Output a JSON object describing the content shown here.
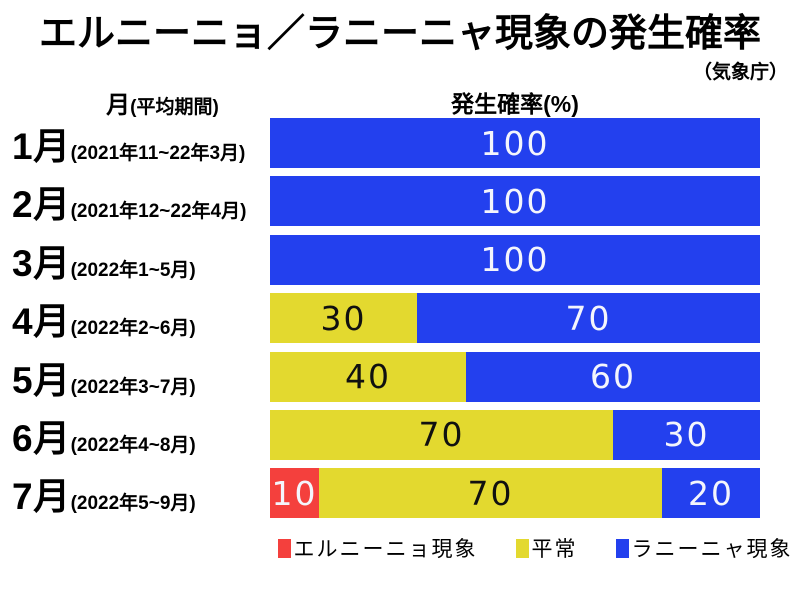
{
  "title": "エルニーニョ／ラニーニャ現象の発生確率",
  "source": "（気象庁）",
  "headers": {
    "month_label": "月",
    "month_period": "(平均期間)",
    "probability": "発生確率(%)"
  },
  "colors": {
    "elnino": "#f4403d",
    "normal": "#e3d92f",
    "lanina": "#2340ee",
    "background": "#ffffff",
    "text": "#000000",
    "bar_text_light": "#f4f5fc",
    "bar_text_dark": "#101010"
  },
  "rows": [
    {
      "month": "1月",
      "period": "(2021年11~22年3月)",
      "segments": [
        {
          "series": "lanina",
          "value": 100
        }
      ]
    },
    {
      "month": "2月",
      "period": "(2021年12~22年4月)",
      "segments": [
        {
          "series": "lanina",
          "value": 100
        }
      ]
    },
    {
      "month": "3月",
      "period": "(2022年1~5月)",
      "segments": [
        {
          "series": "lanina",
          "value": 100
        }
      ]
    },
    {
      "month": "4月",
      "period": "(2022年2~6月)",
      "segments": [
        {
          "series": "normal",
          "value": 30
        },
        {
          "series": "lanina",
          "value": 70
        }
      ]
    },
    {
      "month": "5月",
      "period": "(2022年3~7月)",
      "segments": [
        {
          "series": "normal",
          "value": 40
        },
        {
          "series": "lanina",
          "value": 60
        }
      ]
    },
    {
      "month": "6月",
      "period": "(2022年4~8月)",
      "segments": [
        {
          "series": "normal",
          "value": 70
        },
        {
          "series": "lanina",
          "value": 30
        }
      ]
    },
    {
      "month": "7月",
      "period": "(2022年5~9月)",
      "segments": [
        {
          "series": "elnino",
          "value": 10
        },
        {
          "series": "normal",
          "value": 70
        },
        {
          "series": "lanina",
          "value": 20
        }
      ]
    }
  ],
  "legend": [
    {
      "key": "elnino",
      "label": "エルニーニョ現象"
    },
    {
      "key": "normal",
      "label": "平常"
    },
    {
      "key": "lanina",
      "label": "ラニーニャ現象"
    }
  ],
  "chart_data": {
    "type": "bar",
    "stacked": true,
    "orientation": "horizontal",
    "unit": "%",
    "title": "エルニーニョ／ラニーニャ現象の発生確率",
    "source": "（気象庁）",
    "xlabel": "発生確率(%)",
    "ylabel": "月(平均期間)",
    "xlim": [
      0,
      100
    ],
    "grid": false,
    "legend_position": "bottom",
    "categories": [
      "1月(2021年11~22年3月)",
      "2月(2021年12~22年4月)",
      "3月(2022年1~5月)",
      "4月(2022年2~6月)",
      "5月(2022年3~7月)",
      "6月(2022年4~8月)",
      "7月(2022年5~9月)"
    ],
    "series": [
      {
        "name": "エルニーニョ現象",
        "color": "#f4403d",
        "values": [
          0,
          0,
          0,
          0,
          0,
          0,
          10
        ]
      },
      {
        "name": "平常",
        "color": "#e3d92f",
        "values": [
          0,
          0,
          0,
          30,
          40,
          70,
          70
        ]
      },
      {
        "name": "ラニーニャ現象",
        "color": "#2340ee",
        "values": [
          100,
          100,
          100,
          70,
          60,
          30,
          20
        ]
      }
    ]
  }
}
